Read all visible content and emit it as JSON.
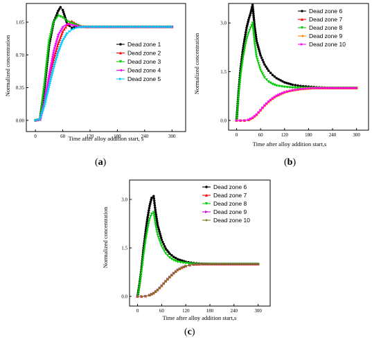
{
  "figure": {
    "panels": [
      {
        "label_prefix": "(",
        "label_letter": "a",
        "label_suffix": ")",
        "ylabel": "Normalized concentration",
        "xlabel": "Time after alloy addition start, s",
        "legend": [
          "Dead zone 1",
          "Dead zone 2",
          "Dead zone 3",
          "Dead zone 4",
          "Dead zone 5"
        ]
      },
      {
        "label_prefix": "(",
        "label_letter": "b",
        "label_suffix": ")",
        "ylabel": "Normalized concentration",
        "xlabel": "Time after alloy addition start,s",
        "legend": [
          "Dead zone 6",
          "Dead zone 7",
          "Dead zone 8",
          "Dead zone 9",
          "Dead zone 10"
        ]
      },
      {
        "label_prefix": "(",
        "label_letter": "c",
        "label_suffix": ")",
        "ylabel": "Normalized concentration",
        "xlabel": "Time after alloy addition start,s",
        "legend": [
          "Dead zone 6",
          "Dead zone 7",
          "Dead zone 8",
          "Dead zone 9",
          "Dead zone 10"
        ]
      }
    ]
  },
  "chart_data": [
    {
      "type": "line",
      "xlabel": "Time after alloy addition start, s",
      "ylabel": "Normalized concentration",
      "xlim": [
        -20,
        330
      ],
      "ylim": [
        -0.12,
        1.25
      ],
      "xticks": [
        0,
        60,
        120,
        180,
        240,
        300
      ],
      "yticks": [
        0.0,
        0.35,
        0.7,
        1.05
      ],
      "ytick_labels": [
        "0.00",
        "0.35",
        "0.70",
        "1.05"
      ],
      "legend_position": "right",
      "series": [
        {
          "name": "Dead zone 1",
          "color": "#000000",
          "marker": "circle",
          "x": [
            0,
            10,
            20,
            30,
            40,
            50,
            55,
            60,
            70,
            80,
            90,
            100,
            120,
            150,
            200,
            250,
            300
          ],
          "y": [
            0.0,
            0.01,
            0.35,
            0.8,
            1.05,
            1.17,
            1.21,
            1.18,
            1.03,
            0.99,
            1.0,
            1.0,
            1.0,
            1.0,
            1.0,
            1.0,
            1.0
          ]
        },
        {
          "name": "Dead zone 2",
          "color": "#ff0000",
          "marker": "triangle-up",
          "x": [
            0,
            10,
            20,
            30,
            40,
            50,
            60,
            70,
            80,
            90,
            100,
            110,
            120,
            150,
            200,
            250,
            300
          ],
          "y": [
            0.0,
            0.01,
            0.2,
            0.45,
            0.65,
            0.82,
            0.95,
            1.02,
            1.06,
            1.03,
            1.01,
            1.0,
            1.0,
            1.0,
            1.0,
            1.0,
            1.0
          ]
        },
        {
          "name": "Dead zone 3",
          "color": "#00cc00",
          "marker": "triangle-down",
          "x": [
            0,
            10,
            20,
            30,
            40,
            50,
            60,
            70,
            80,
            90,
            100,
            120,
            150,
            200,
            250,
            300
          ],
          "y": [
            0.0,
            0.01,
            0.4,
            0.85,
            1.05,
            1.12,
            1.1,
            1.06,
            1.04,
            1.02,
            1.0,
            1.0,
            1.0,
            1.0,
            1.0,
            1.0
          ]
        },
        {
          "name": "Dead zone 4",
          "color": "#ff00ff",
          "marker": "triangle-left",
          "x": [
            0,
            10,
            20,
            30,
            40,
            50,
            60,
            70,
            80,
            90,
            100,
            120,
            150,
            200,
            250,
            300
          ],
          "y": [
            0.0,
            0.01,
            0.22,
            0.5,
            0.75,
            0.92,
            1.0,
            1.03,
            1.02,
            1.01,
            1.0,
            1.0,
            1.0,
            1.0,
            1.0,
            1.0
          ]
        },
        {
          "name": "Dead zone 5",
          "color": "#00ccff",
          "marker": "triangle-right",
          "x": [
            0,
            10,
            20,
            30,
            40,
            50,
            60,
            70,
            80,
            90,
            100,
            120,
            150,
            200,
            250,
            300
          ],
          "y": [
            0.0,
            0.01,
            0.15,
            0.35,
            0.55,
            0.72,
            0.85,
            0.93,
            0.97,
            0.99,
            1.0,
            1.0,
            1.0,
            1.0,
            1.0,
            1.0
          ]
        }
      ]
    },
    {
      "type": "line",
      "xlabel": "Time after alloy addition start,s",
      "ylabel": "Normalized concentration",
      "xlim": [
        -20,
        330
      ],
      "ylim": [
        -0.3,
        3.6
      ],
      "xticks": [
        0,
        60,
        120,
        180,
        240,
        300
      ],
      "yticks": [
        0.0,
        1.5,
        3.0
      ],
      "ytick_labels": [
        "0.0",
        "1.5",
        "3.0"
      ],
      "legend_position": "top-right",
      "series": [
        {
          "name": "Dead zone 6",
          "color": "#000000",
          "marker": "circle",
          "x": [
            0,
            5,
            10,
            15,
            20,
            25,
            30,
            35,
            40,
            45,
            50,
            60,
            70,
            80,
            90,
            100,
            120,
            140,
            160,
            180,
            200,
            220,
            240,
            260,
            280,
            300
          ],
          "y": [
            0.0,
            0.9,
            1.6,
            2.1,
            2.5,
            2.85,
            3.1,
            3.3,
            3.55,
            2.9,
            2.45,
            2.0,
            1.72,
            1.53,
            1.4,
            1.3,
            1.17,
            1.1,
            1.06,
            1.04,
            1.02,
            1.01,
            1.0,
            1.0,
            1.0,
            1.0
          ]
        },
        {
          "name": "Dead zone 7",
          "color": "#ff0000",
          "marker": "triangle-up",
          "x": [
            0,
            10,
            20,
            30,
            40,
            50,
            60,
            70,
            80,
            90,
            100,
            120,
            140,
            160,
            180,
            200,
            240,
            300
          ],
          "y": [
            0.0,
            0.0,
            0.0,
            0.02,
            0.08,
            0.18,
            0.32,
            0.46,
            0.58,
            0.68,
            0.76,
            0.87,
            0.93,
            0.97,
            0.99,
            1.0,
            1.0,
            1.0
          ]
        },
        {
          "name": "Dead zone 8",
          "color": "#00cc00",
          "marker": "triangle-down",
          "x": [
            0,
            5,
            10,
            15,
            20,
            25,
            30,
            35,
            40,
            45,
            50,
            60,
            70,
            80,
            90,
            100,
            120,
            140,
            160,
            180,
            200,
            220,
            240,
            260,
            280,
            300
          ],
          "y": [
            0.0,
            0.8,
            1.4,
            1.85,
            2.2,
            2.5,
            2.7,
            2.85,
            3.0,
            2.4,
            1.95,
            1.55,
            1.32,
            1.19,
            1.12,
            1.07,
            1.03,
            1.01,
            1.0,
            1.0,
            1.0,
            1.0,
            1.0,
            1.0,
            1.0,
            1.0
          ]
        },
        {
          "name": "Dead zone 9",
          "color": "#ff8800",
          "marker": "triangle-left",
          "x": [
            0,
            10,
            20,
            30,
            40,
            50,
            60,
            70,
            80,
            90,
            100,
            120,
            140,
            160,
            180,
            200,
            240,
            300
          ],
          "y": [
            0.0,
            0.0,
            0.0,
            0.02,
            0.08,
            0.18,
            0.32,
            0.46,
            0.58,
            0.68,
            0.76,
            0.87,
            0.93,
            0.97,
            0.99,
            1.0,
            1.0,
            1.0
          ]
        },
        {
          "name": "Dead zone 10",
          "color": "#ff00ff",
          "marker": "triangle-right",
          "x": [
            0,
            10,
            20,
            30,
            40,
            50,
            60,
            70,
            80,
            90,
            100,
            120,
            140,
            160,
            180,
            200,
            240,
            300
          ],
          "y": [
            0.0,
            0.0,
            0.0,
            0.02,
            0.08,
            0.18,
            0.32,
            0.46,
            0.58,
            0.68,
            0.76,
            0.87,
            0.93,
            0.97,
            0.99,
            1.0,
            1.0,
            1.0
          ]
        }
      ]
    },
    {
      "type": "line",
      "xlabel": "Time after alloy addition start,s",
      "ylabel": "Normalized concentration",
      "xlim": [
        -20,
        330
      ],
      "ylim": [
        -0.3,
        3.6
      ],
      "xticks": [
        0,
        60,
        120,
        180,
        240,
        300
      ],
      "yticks": [
        0.0,
        1.5,
        3.0
      ],
      "ytick_labels": [
        "0.0",
        "1.5",
        "3.0"
      ],
      "legend_position": "top-right",
      "series": [
        {
          "name": "Dead zone 6",
          "color": "#000000",
          "marker": "circle",
          "x": [
            0,
            5,
            10,
            15,
            20,
            25,
            30,
            35,
            40,
            45,
            50,
            60,
            70,
            80,
            90,
            100,
            120,
            140,
            160,
            200,
            250,
            300
          ],
          "y": [
            0.0,
            0.4,
            0.9,
            1.5,
            2.0,
            2.45,
            2.8,
            3.05,
            3.1,
            2.6,
            2.2,
            1.75,
            1.48,
            1.32,
            1.22,
            1.15,
            1.07,
            1.03,
            1.01,
            1.0,
            1.0,
            1.0
          ]
        },
        {
          "name": "Dead zone 7",
          "color": "#ff0000",
          "marker": "triangle-up",
          "x": [
            0,
            10,
            20,
            30,
            40,
            50,
            60,
            70,
            80,
            90,
            100,
            110,
            120,
            130,
            140,
            160,
            200,
            250,
            300
          ],
          "y": [
            0.0,
            0.0,
            0.01,
            0.04,
            0.1,
            0.2,
            0.33,
            0.47,
            0.6,
            0.72,
            0.82,
            0.89,
            0.94,
            0.97,
            0.99,
            1.0,
            1.0,
            1.0,
            1.0
          ]
        },
        {
          "name": "Dead zone 8",
          "color": "#00cc00",
          "marker": "triangle-down",
          "x": [
            0,
            5,
            10,
            15,
            20,
            25,
            30,
            35,
            40,
            45,
            50,
            60,
            70,
            80,
            90,
            100,
            120,
            140,
            160,
            200,
            250,
            300
          ],
          "y": [
            0.0,
            0.35,
            0.8,
            1.3,
            1.75,
            2.1,
            2.4,
            2.55,
            2.6,
            2.2,
            1.9,
            1.55,
            1.33,
            1.2,
            1.12,
            1.07,
            1.03,
            1.01,
            1.0,
            1.0,
            1.0,
            1.0
          ]
        },
        {
          "name": "Dead zone 9",
          "color": "#cc00cc",
          "marker": "triangle-right",
          "x": [
            0,
            10,
            20,
            30,
            40,
            50,
            60,
            70,
            80,
            90,
            100,
            110,
            120,
            130,
            140,
            160,
            200,
            250,
            300
          ],
          "y": [
            0.0,
            0.0,
            0.01,
            0.04,
            0.1,
            0.2,
            0.33,
            0.47,
            0.6,
            0.72,
            0.82,
            0.89,
            0.94,
            0.97,
            0.99,
            1.0,
            1.0,
            1.0,
            1.0
          ]
        },
        {
          "name": "Dead zone 10",
          "color": "#7a7a1a",
          "marker": "diamond",
          "x": [
            0,
            10,
            20,
            30,
            40,
            50,
            60,
            70,
            80,
            90,
            100,
            110,
            120,
            130,
            140,
            160,
            200,
            250,
            300
          ],
          "y": [
            0.0,
            0.0,
            0.01,
            0.04,
            0.1,
            0.2,
            0.33,
            0.47,
            0.6,
            0.72,
            0.82,
            0.89,
            0.94,
            0.97,
            0.99,
            1.0,
            1.0,
            1.0,
            1.0
          ]
        }
      ]
    }
  ]
}
